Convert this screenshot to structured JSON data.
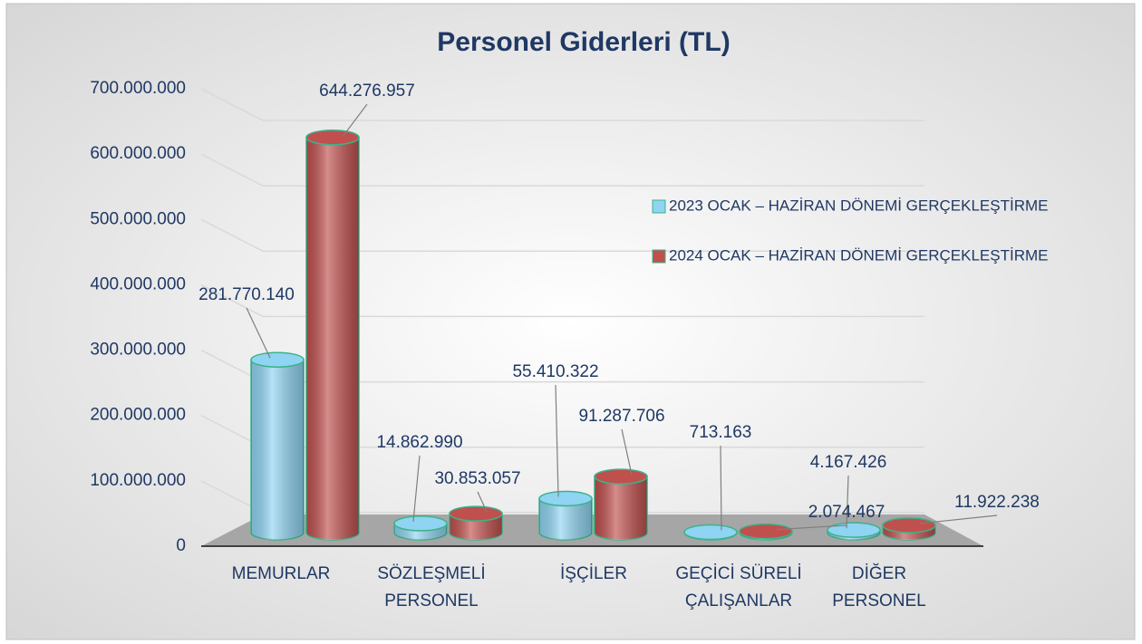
{
  "chart_data": {
    "type": "bar3d",
    "title": "Personel Giderleri (TL)",
    "categories": [
      [
        "MEMURLAR"
      ],
      [
        "SÖZLEŞMELİ",
        "PERSONEL"
      ],
      [
        "İŞÇİLER"
      ],
      [
        "GEÇİCİ SÜRELİ",
        "ÇALIŞANLAR"
      ],
      [
        "DİĞER",
        "PERSONEL"
      ]
    ],
    "series": [
      {
        "name": "2023 OCAK – HAZİRAN DÖNEMİ GERÇEKLEŞTİRME",
        "color": "#8fd4f2",
        "values": [
          281770140,
          14862990,
          55410322,
          713163,
          4167426
        ],
        "value_labels": [
          "281.770.140",
          "14.862.990",
          "55.410.322",
          "713.163",
          "4.167.426"
        ]
      },
      {
        "name": "2024 OCAK – HAZİRAN DÖNEMİ GERÇEKLEŞTİRME",
        "color": "#c0504d",
        "values": [
          644276957,
          30853057,
          91287706,
          2074467,
          11922238
        ],
        "value_labels": [
          "644.276.957",
          "30.853.057",
          "91.287.706",
          "2.074.467",
          "11.922.238"
        ]
      }
    ],
    "ylim": [
      0,
      700000000
    ],
    "yticks": [
      0,
      {
        "value": 100000000,
        "label": "100.000.000"
      },
      {
        "value": 200000000,
        "label": "200.000.000"
      },
      {
        "value": 300000000,
        "label": "300.000.000"
      },
      {
        "value": 400000000,
        "label": "400.000.000"
      },
      {
        "value": 500000000,
        "label": "500.000.000"
      },
      {
        "value": 600000000,
        "label": "600.000.000"
      },
      {
        "value": 700000000,
        "label": "700.000.000"
      }
    ],
    "grid": true,
    "legend": "right"
  }
}
